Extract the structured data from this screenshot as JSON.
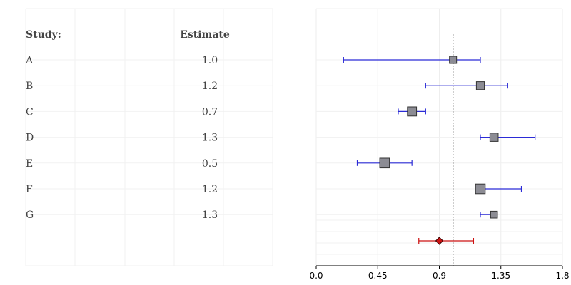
{
  "chart_data": {
    "type": "forest",
    "table": {
      "headers": {
        "study": "Study:",
        "estimate": "Estimate"
      },
      "rows": [
        {
          "study": "A",
          "estimate": "1.0"
        },
        {
          "study": "B",
          "estimate": "1.2"
        },
        {
          "study": "C",
          "estimate": "0.7"
        },
        {
          "study": "D",
          "estimate": "1.3"
        },
        {
          "study": "E",
          "estimate": "0.5"
        },
        {
          "study": "F",
          "estimate": "1.2"
        },
        {
          "study": "G",
          "estimate": "1.3"
        }
      ]
    },
    "studies": [
      {
        "label": "A",
        "estimate": 1.0,
        "lower": 0.2,
        "upper": 1.2,
        "weight": 0.5
      },
      {
        "label": "B",
        "estimate": 1.2,
        "lower": 0.8,
        "upper": 1.4,
        "weight": 0.65
      },
      {
        "label": "C",
        "estimate": 0.7,
        "lower": 0.6,
        "upper": 0.8,
        "weight": 0.85
      },
      {
        "label": "D",
        "estimate": 1.3,
        "lower": 1.2,
        "upper": 1.6,
        "weight": 0.7
      },
      {
        "label": "E",
        "estimate": 0.5,
        "lower": 0.3,
        "upper": 0.7,
        "weight": 0.95
      },
      {
        "label": "F",
        "estimate": 1.2,
        "lower": 1.2,
        "upper": 1.5,
        "weight": 0.95
      },
      {
        "label": "G",
        "estimate": 1.3,
        "lower": 1.2,
        "upper": 1.3,
        "weight": 0.45
      }
    ],
    "summary": {
      "estimate": 0.9,
      "lower": 0.75,
      "upper": 1.15
    },
    "reference_line": 1.0,
    "xlim": [
      0.0,
      1.8
    ],
    "xticks": [
      "0.0",
      "0.45",
      "0.9",
      "1.35",
      "1.8"
    ],
    "grid": true,
    "colors": {
      "ci": "#2b2bd6",
      "box": "#8c8c94",
      "summary": "#cc1111",
      "reference": "#444444"
    }
  }
}
